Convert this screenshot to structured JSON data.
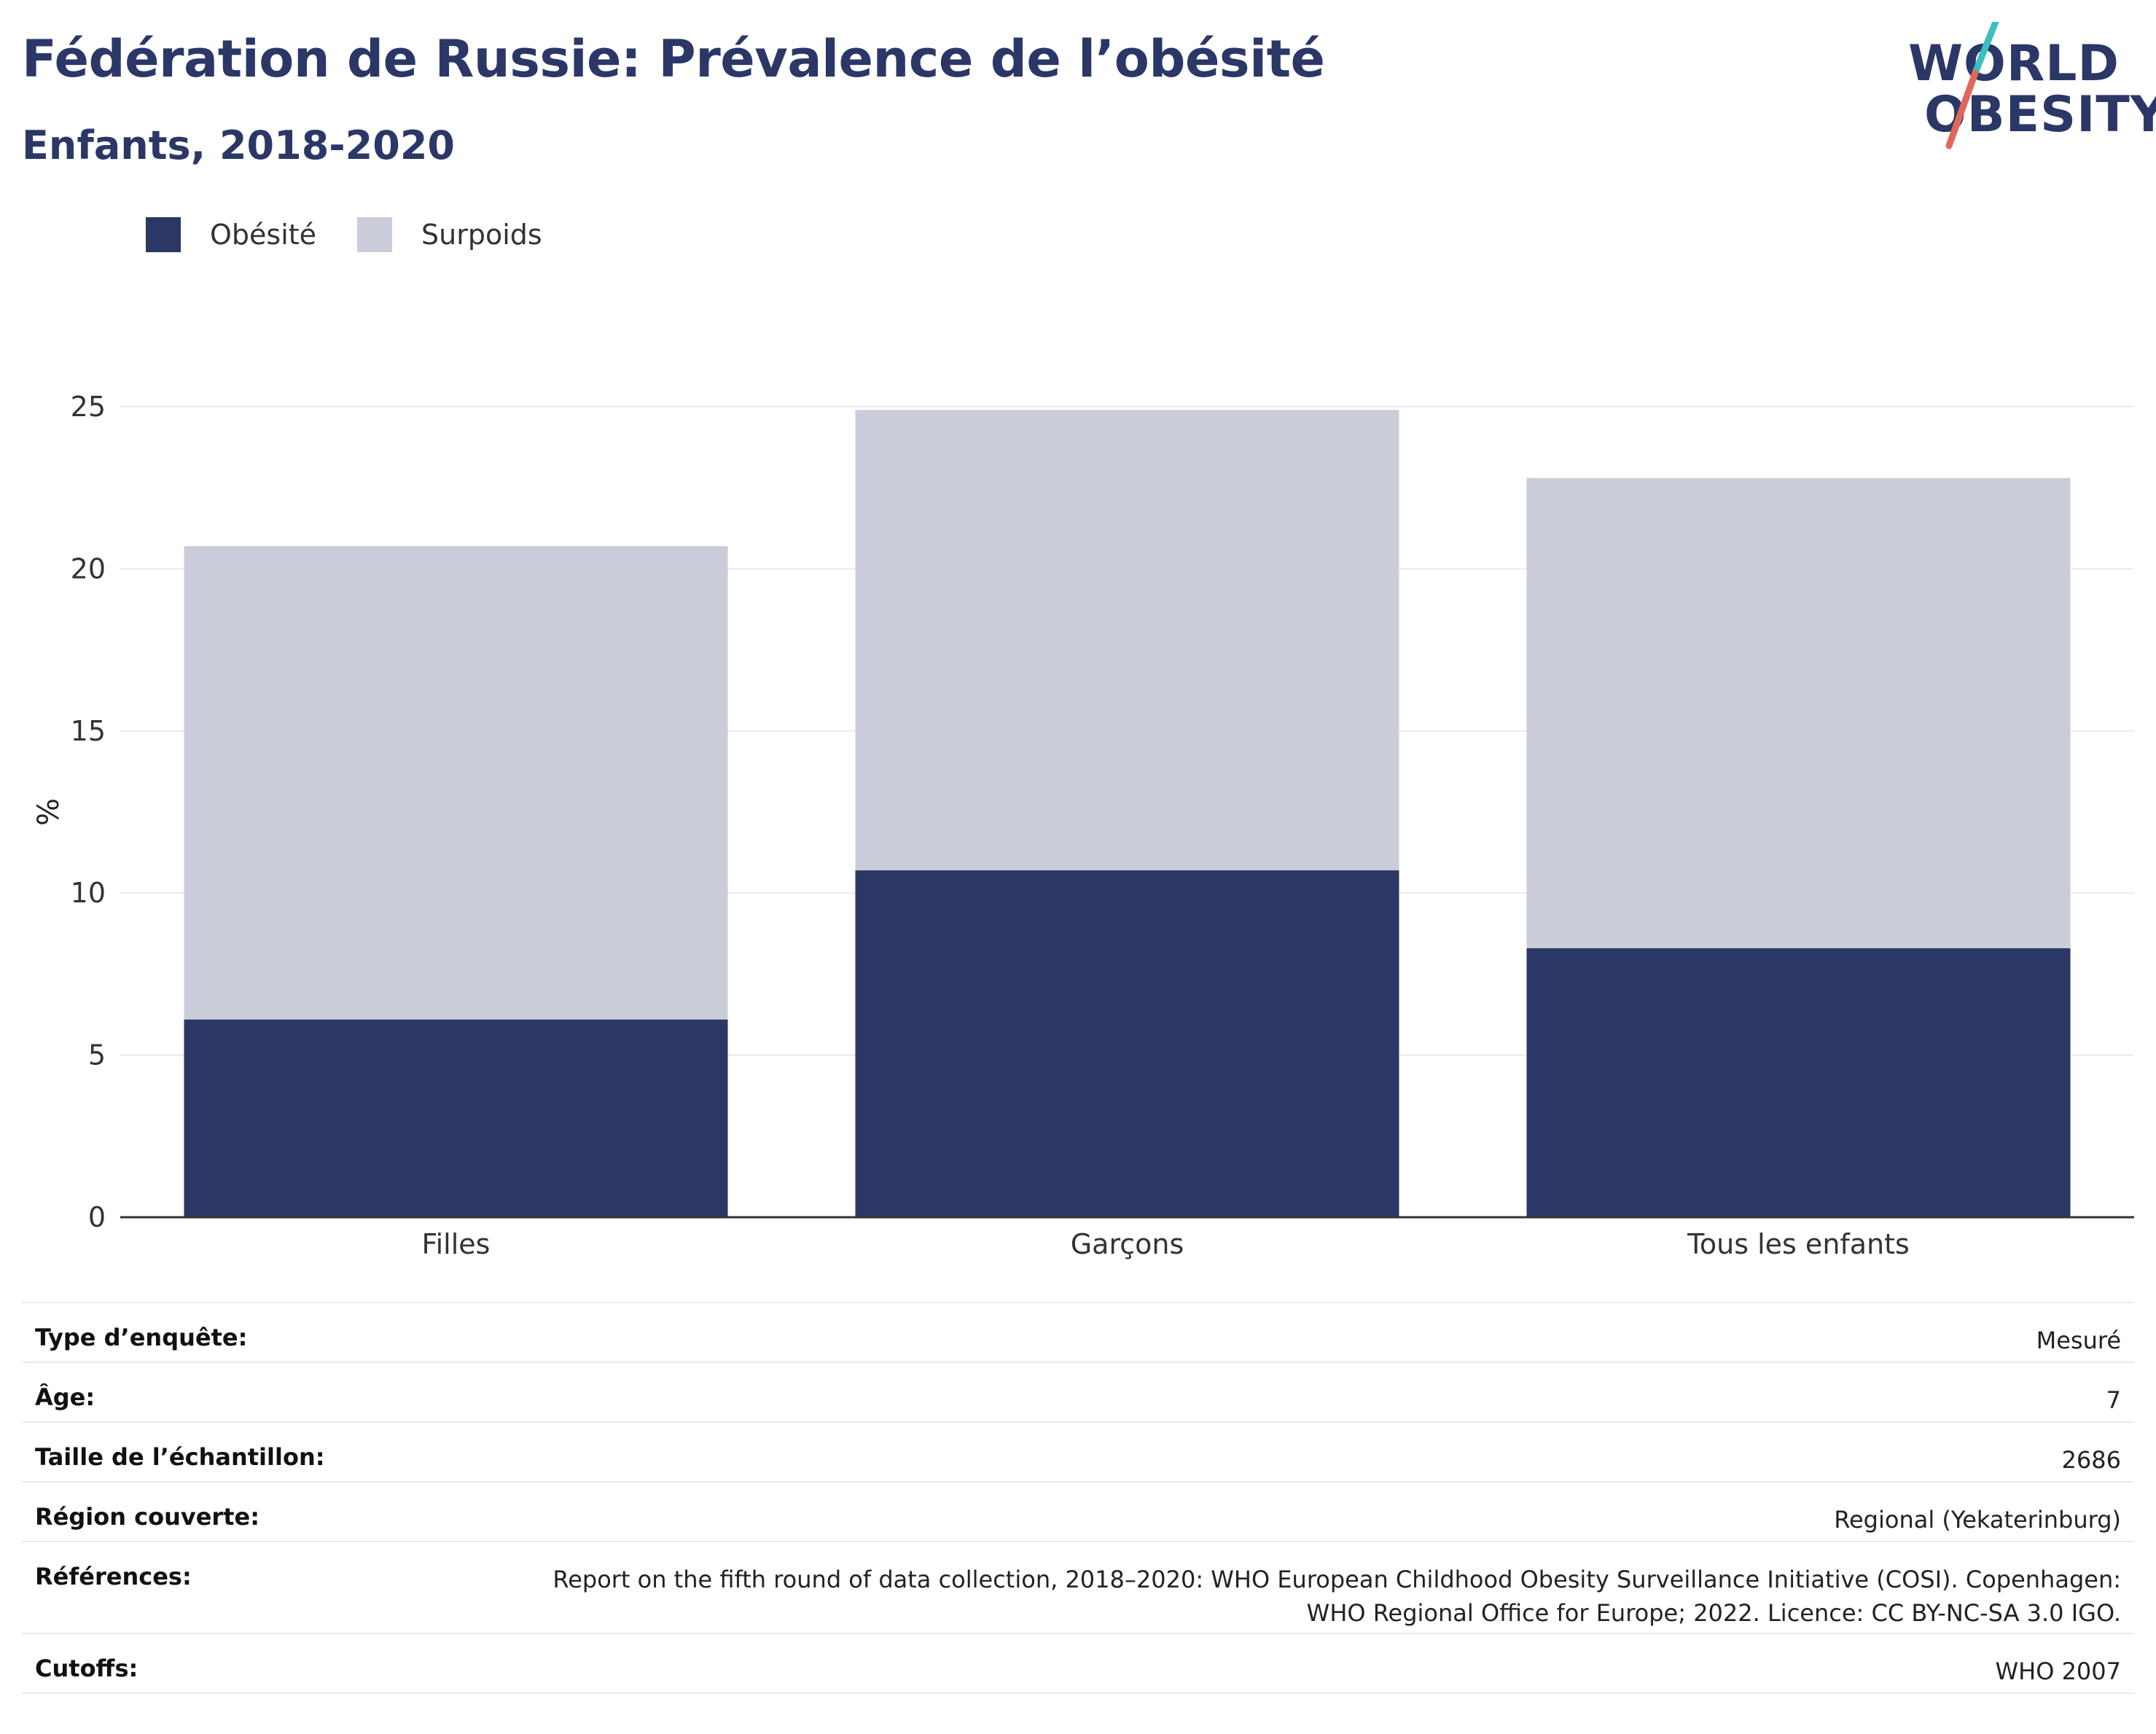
{
  "header": {
    "title": "Fédération de Russie: Prévalence de l’obésité",
    "subtitle": "Enfants, 2018-2020"
  },
  "logo": {
    "line1": "WORLD",
    "line2": "OBESITY",
    "colors": {
      "text": "#2b3766",
      "slash_top": "#3bbfc1",
      "slash_bottom": "#e2675a"
    }
  },
  "legend": [
    {
      "label": "Obésité",
      "color": "#2b3764"
    },
    {
      "label": "Surpoids",
      "color": "#cacdd9"
    }
  ],
  "chart_data": {
    "type": "bar",
    "stacked": true,
    "categories": [
      "Filles",
      "Garçons",
      "Tous les enfants"
    ],
    "series": [
      {
        "name": "Obésité",
        "values": [
          6.1,
          10.7,
          8.3
        ],
        "color": "#2b3764"
      },
      {
        "name": "Surpoids",
        "values": [
          14.6,
          14.2,
          14.5
        ],
        "color": "#cacdd9"
      }
    ],
    "ylabel": "%",
    "ylim": [
      0,
      25
    ],
    "yticks": [
      0,
      5,
      10,
      15,
      20,
      25
    ],
    "grid": true,
    "legend_position": "top-left"
  },
  "meta": [
    {
      "key": "Type d’enquête:",
      "value": "Mesuré"
    },
    {
      "key": "Âge:",
      "value": "7"
    },
    {
      "key": "Taille de l’échantillon:",
      "value": "2686"
    },
    {
      "key": "Région couverte:",
      "value": "Regional (Yekaterinburg)"
    },
    {
      "key": "Références:",
      "value_lines": [
        "Report on the fifth round of data collection, 2018–2020: WHO European Childhood Obesity Surveillance Initiative (COSI). Copenhagen:",
        "WHO Regional Office for Europe; 2022. Licence: CC BY-NC-SA 3.0 IGO."
      ]
    },
    {
      "key": "Cutoffs:",
      "value": "WHO 2007"
    }
  ]
}
